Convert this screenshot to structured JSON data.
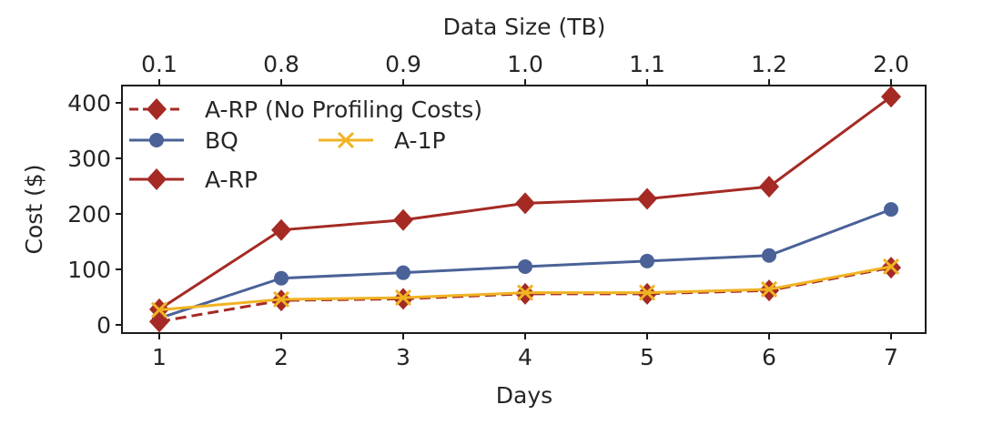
{
  "chart_data": {
    "type": "line",
    "title": "",
    "xlabel": "Days",
    "ylabel": "Cost ($)",
    "secondary_xlabel": "Data Size (TB)",
    "x": [
      1,
      2,
      3,
      4,
      5,
      6,
      7
    ],
    "x_tick_labels": [
      "1",
      "2",
      "3",
      "4",
      "5",
      "6",
      "7"
    ],
    "secondary_x_tick_labels": [
      "0.1",
      "0.8",
      "0.9",
      "1.0",
      "1.1",
      "1.2",
      "2.0"
    ],
    "y_ticks": [
      0,
      100,
      200,
      300,
      400
    ],
    "y_tick_labels": [
      "0",
      "100",
      "200",
      "300",
      "400"
    ],
    "xlim": [
      0.6,
      7.3
    ],
    "ylim": [
      -15,
      430
    ],
    "grid": false,
    "legend_position": "top-left",
    "series": [
      {
        "name": "A-RP (No Profiling Costs)",
        "color": "#a52a24",
        "marker": "diamond",
        "linestyle": "dashed",
        "values": [
          6,
          44,
          47,
          56,
          56,
          62,
          103
        ]
      },
      {
        "name": "BQ",
        "color": "#4a6297",
        "marker": "circle",
        "linestyle": "solid",
        "values": [
          12,
          84,
          94,
          105,
          115,
          125,
          208
        ]
      },
      {
        "name": "A-1P",
        "color": "#f0b323",
        "marker": "x",
        "linestyle": "solid",
        "values": [
          27,
          46,
          49,
          58,
          58,
          64,
          105
        ]
      },
      {
        "name": "A-RP",
        "color": "#a52a24",
        "marker": "diamond",
        "linestyle": "solid",
        "values": [
          28,
          171,
          189,
          219,
          227,
          249,
          411
        ]
      }
    ]
  }
}
